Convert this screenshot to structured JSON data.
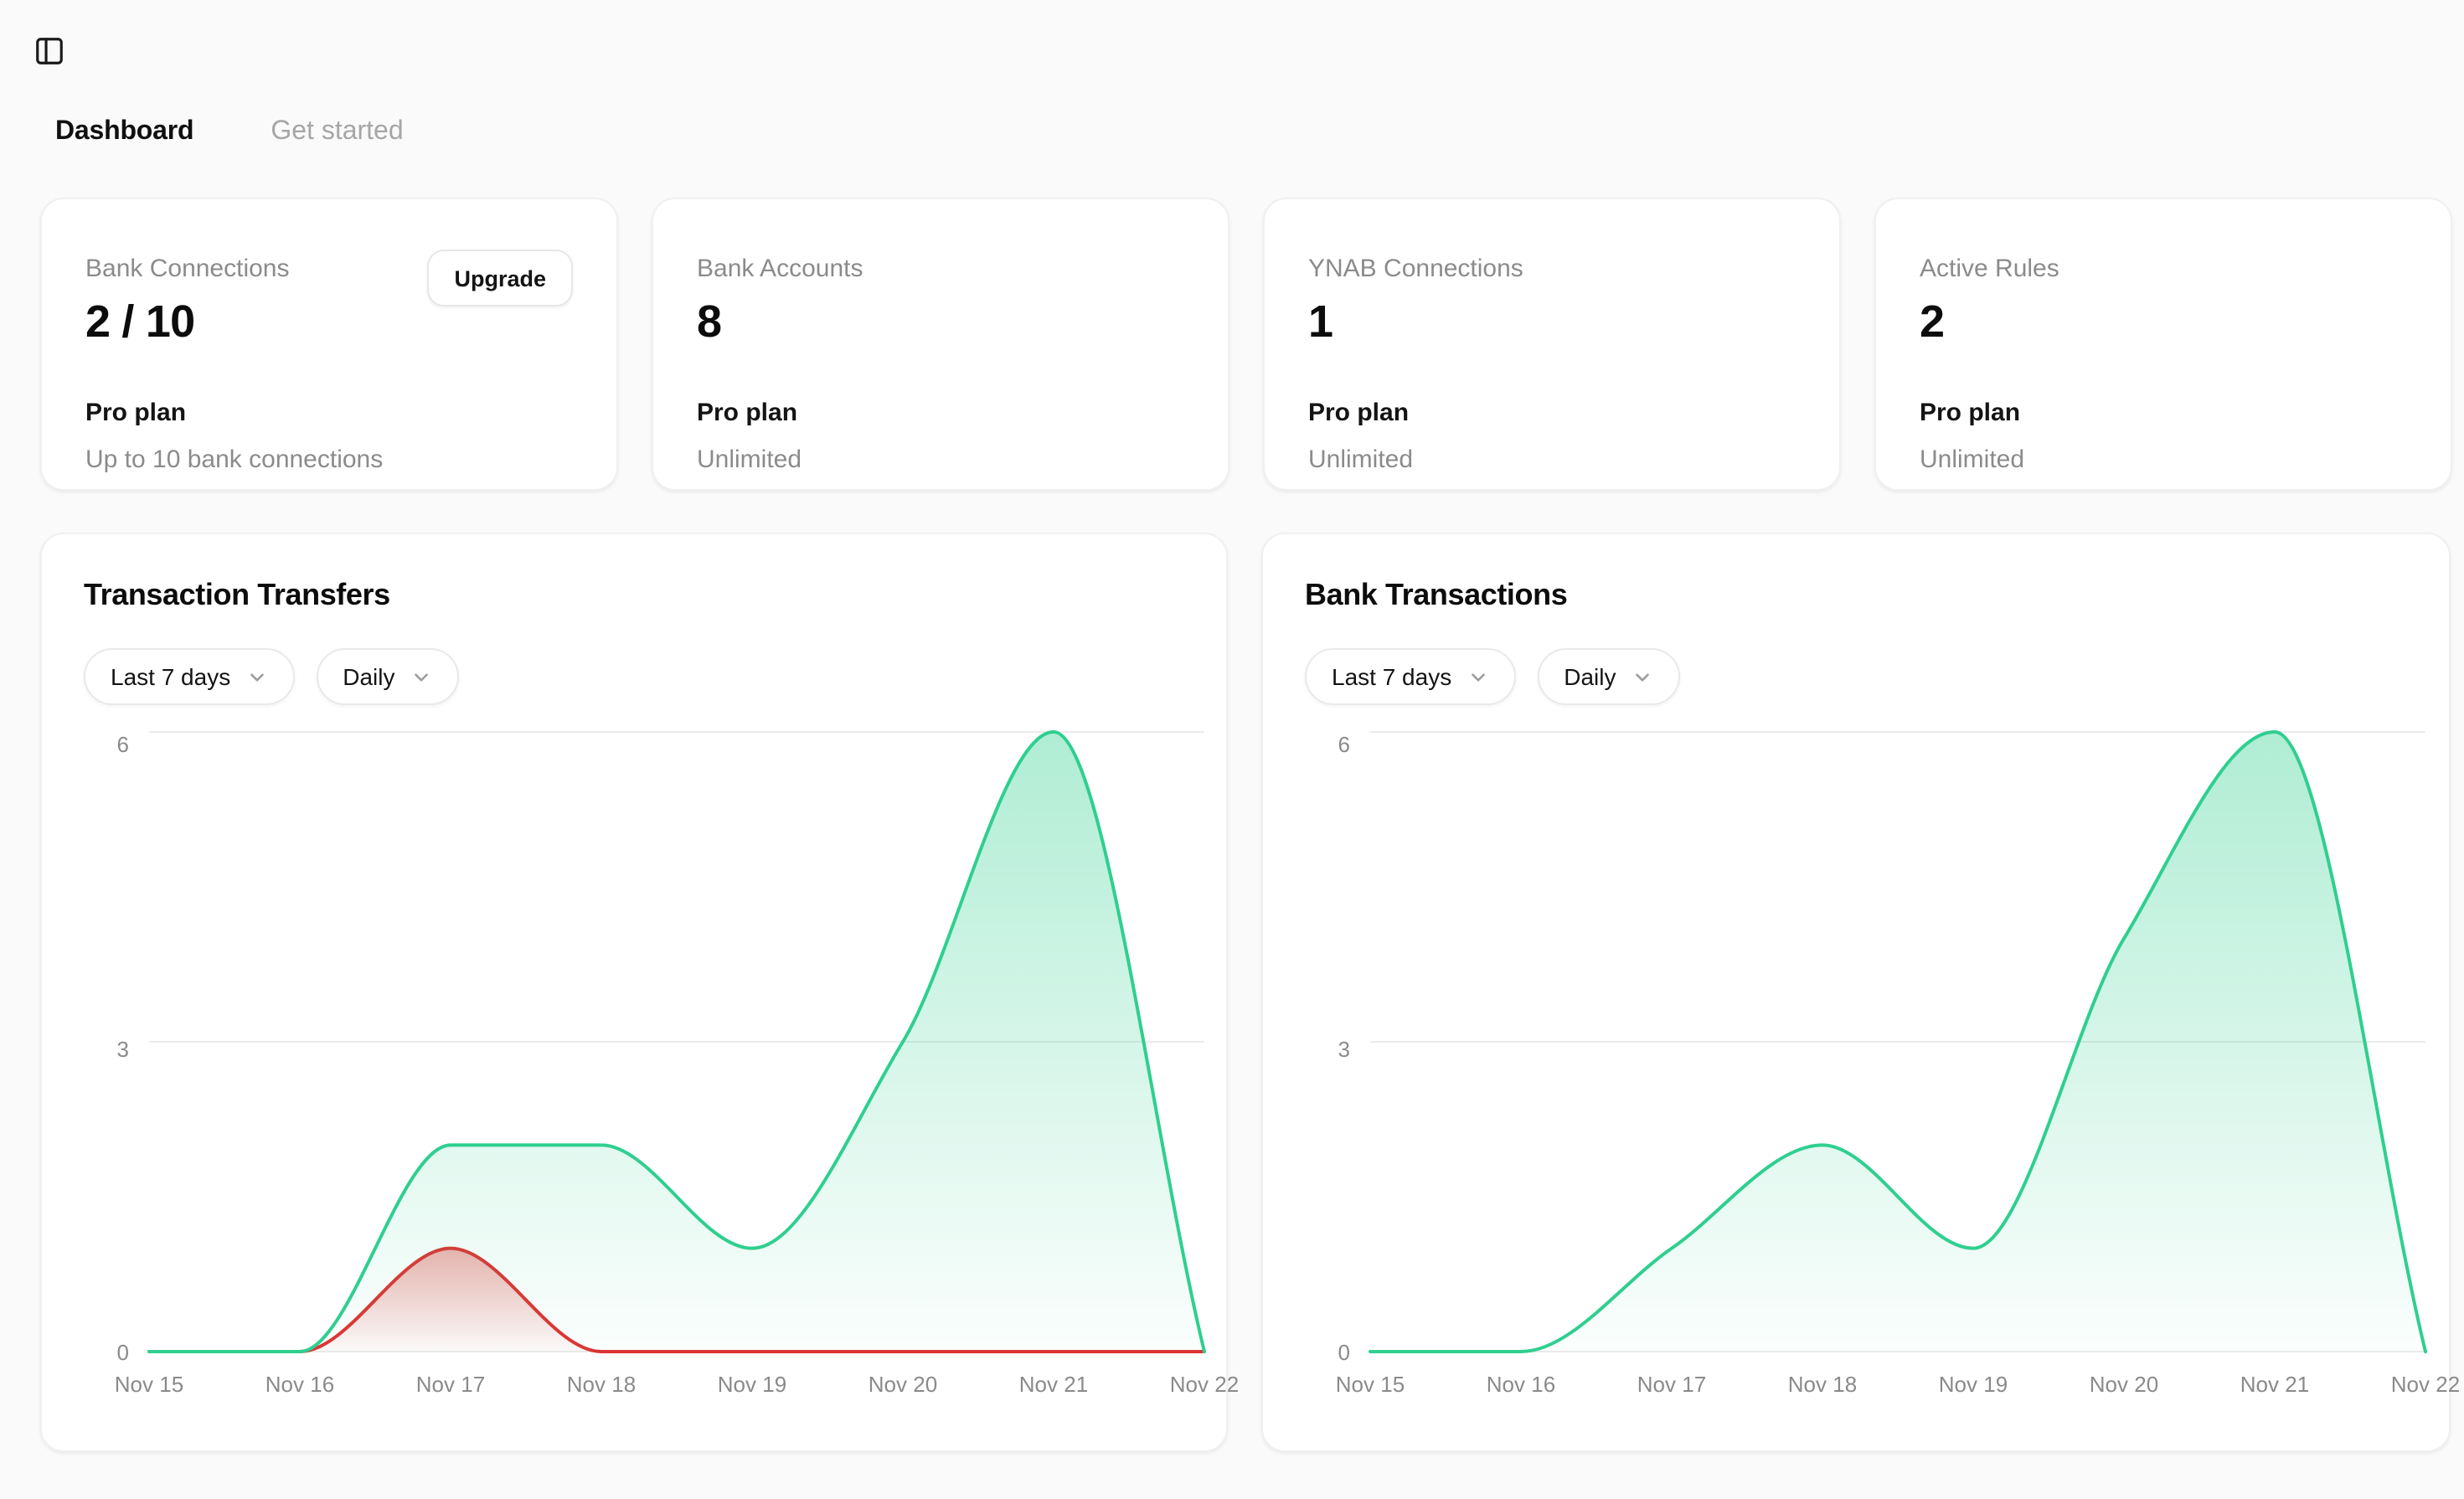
{
  "header": {
    "tabs": [
      {
        "label": "Dashboard",
        "active": true
      },
      {
        "label": "Get started",
        "active": false
      }
    ]
  },
  "icons": {
    "sidebar_toggle": "panel-left",
    "dropdown": "chevron-down"
  },
  "stat_cards": [
    {
      "label": "Bank Connections",
      "value": "2 / 10",
      "plan": "Pro plan",
      "plan_detail": "Up to 10 bank connections",
      "action": "Upgrade"
    },
    {
      "label": "Bank Accounts",
      "value": "8",
      "plan": "Pro plan",
      "plan_detail": "Unlimited"
    },
    {
      "label": "YNAB Connections",
      "value": "1",
      "plan": "Pro plan",
      "plan_detail": "Unlimited"
    },
    {
      "label": "Active Rules",
      "value": "2",
      "plan": "Pro plan",
      "plan_detail": "Unlimited"
    }
  ],
  "colors": {
    "page_background": "#fafafa",
    "card_background": "#ffffff",
    "green_series": "#2fcf8f",
    "red_series": "#e03232",
    "gridline": "#ebebeb",
    "tick_text": "#8a8a8a"
  },
  "charts": [
    {
      "title": "Transaction Transfers",
      "filters": [
        {
          "label": "Last 7 days"
        },
        {
          "label": "Daily"
        }
      ],
      "chart_data": {
        "type": "area",
        "x": [
          "Nov 15",
          "Nov 16",
          "Nov 17",
          "Nov 18",
          "Nov 19",
          "Nov 20",
          "Nov 21",
          "Nov 22"
        ],
        "yticks": [
          0,
          3,
          6
        ],
        "ylim": [
          0,
          6
        ],
        "grid": true,
        "legend": false,
        "series": [
          {
            "name": "red",
            "color": "#e03232",
            "values": [
              0,
              0,
              1,
              0,
              0,
              0,
              0,
              0
            ]
          },
          {
            "name": "green",
            "color": "#2fcf8f",
            "values": [
              0,
              0,
              2,
              2,
              1,
              3,
              6,
              0
            ]
          }
        ]
      }
    },
    {
      "title": "Bank Transactions",
      "filters": [
        {
          "label": "Last 7 days"
        },
        {
          "label": "Daily"
        }
      ],
      "chart_data": {
        "type": "area",
        "x": [
          "Nov 15",
          "Nov 16",
          "Nov 17",
          "Nov 18",
          "Nov 19",
          "Nov 20",
          "Nov 21",
          "Nov 22"
        ],
        "yticks": [
          0,
          3,
          6
        ],
        "ylim": [
          0,
          6
        ],
        "grid": true,
        "legend": false,
        "series": [
          {
            "name": "green",
            "color": "#2fcf8f",
            "values": [
              0,
              0,
              1,
              2,
              1,
              4,
              6,
              0
            ]
          }
        ]
      }
    }
  ]
}
